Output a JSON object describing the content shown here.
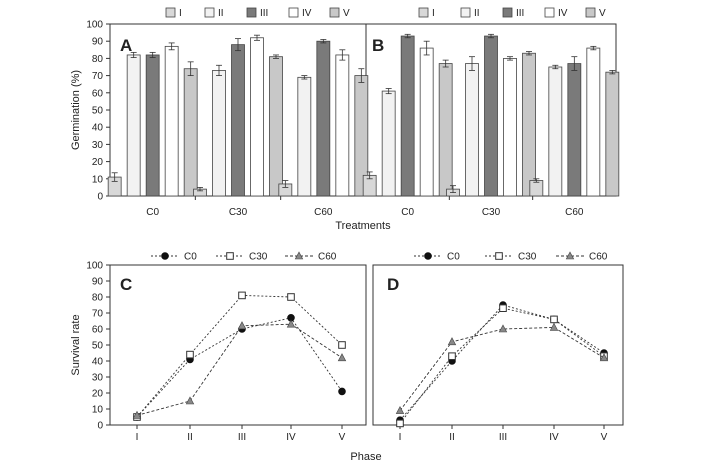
{
  "chart_data": [
    {
      "panel": "A",
      "type": "bar",
      "ylabel": "Germination (%)",
      "xlabel": "Treatments",
      "ylim": [
        0,
        100
      ],
      "yticks": [
        0,
        10,
        20,
        30,
        40,
        50,
        60,
        70,
        80,
        90,
        100
      ],
      "categories": [
        "C0",
        "C30",
        "C60"
      ],
      "series": [
        {
          "name": "I",
          "values": [
            11,
            4,
            7
          ],
          "errors": [
            2.5,
            1,
            2
          ],
          "fill": "#d8d8d8"
        },
        {
          "name": "II",
          "values": [
            82,
            73,
            69
          ],
          "errors": [
            1.5,
            3,
            1
          ],
          "fill": "#f2f2f2"
        },
        {
          "name": "III",
          "values": [
            82,
            88,
            90
          ],
          "errors": [
            1.5,
            3.5,
            1
          ],
          "fill": "#7a7a7a"
        },
        {
          "name": "IV",
          "values": [
            87,
            92,
            82
          ],
          "errors": [
            2,
            1.5,
            3
          ],
          "fill": "#ffffff"
        },
        {
          "name": "V",
          "values": [
            74,
            81,
            70
          ],
          "errors": [
            4,
            1,
            4
          ],
          "fill": "#c8c8c8"
        }
      ]
    },
    {
      "panel": "B",
      "type": "bar",
      "xlabel": "Treatments",
      "ylim": [
        0,
        100
      ],
      "categories": [
        "C0",
        "C30",
        "C60"
      ],
      "series": [
        {
          "name": "I",
          "values": [
            12,
            4,
            9
          ],
          "errors": [
            2,
            2,
            1
          ],
          "fill": "#d8d8d8"
        },
        {
          "name": "II",
          "values": [
            61,
            77,
            75
          ],
          "errors": [
            1.5,
            4,
            1
          ],
          "fill": "#f2f2f2"
        },
        {
          "name": "III",
          "values": [
            93,
            93,
            77
          ],
          "errors": [
            1,
            1,
            4
          ],
          "fill": "#7a7a7a"
        },
        {
          "name": "IV",
          "values": [
            86,
            80,
            86
          ],
          "errors": [
            4,
            1,
            1
          ],
          "fill": "#ffffff"
        },
        {
          "name": "V",
          "values": [
            77,
            83,
            72
          ],
          "errors": [
            2,
            1,
            1
          ],
          "fill": "#c8c8c8"
        }
      ]
    },
    {
      "panel": "C",
      "type": "line",
      "ylabel": "Survival rate",
      "xlabel": "Phase",
      "ylim": [
        0,
        100
      ],
      "yticks": [
        0,
        10,
        20,
        30,
        40,
        50,
        60,
        70,
        80,
        90,
        100
      ],
      "x": [
        "I",
        "II",
        "III",
        "IV",
        "V"
      ],
      "series": [
        {
          "name": "C0",
          "marker": "circle",
          "values": [
            5,
            41,
            60,
            67,
            21
          ]
        },
        {
          "name": "C30",
          "marker": "square",
          "values": [
            5,
            44,
            81,
            80,
            50
          ]
        },
        {
          "name": "C60",
          "marker": "triangle",
          "values": [
            6,
            15,
            62,
            63,
            42
          ]
        }
      ]
    },
    {
      "panel": "D",
      "type": "line",
      "xlabel": "Phase",
      "ylim": [
        0,
        100
      ],
      "x": [
        "I",
        "II",
        "III",
        "IV",
        "V"
      ],
      "series": [
        {
          "name": "C0",
          "marker": "circle",
          "values": [
            3,
            40,
            75,
            66,
            45
          ]
        },
        {
          "name": "C30",
          "marker": "square",
          "values": [
            1,
            43,
            73,
            66,
            43
          ]
        },
        {
          "name": "C60",
          "marker": "triangle",
          "values": [
            9,
            52,
            60,
            61,
            42
          ]
        }
      ]
    }
  ],
  "colors": {
    "axis": "#333333",
    "line": "#333333",
    "marker_fill_c0": "#111111",
    "marker_fill_c60": "#888888"
  }
}
